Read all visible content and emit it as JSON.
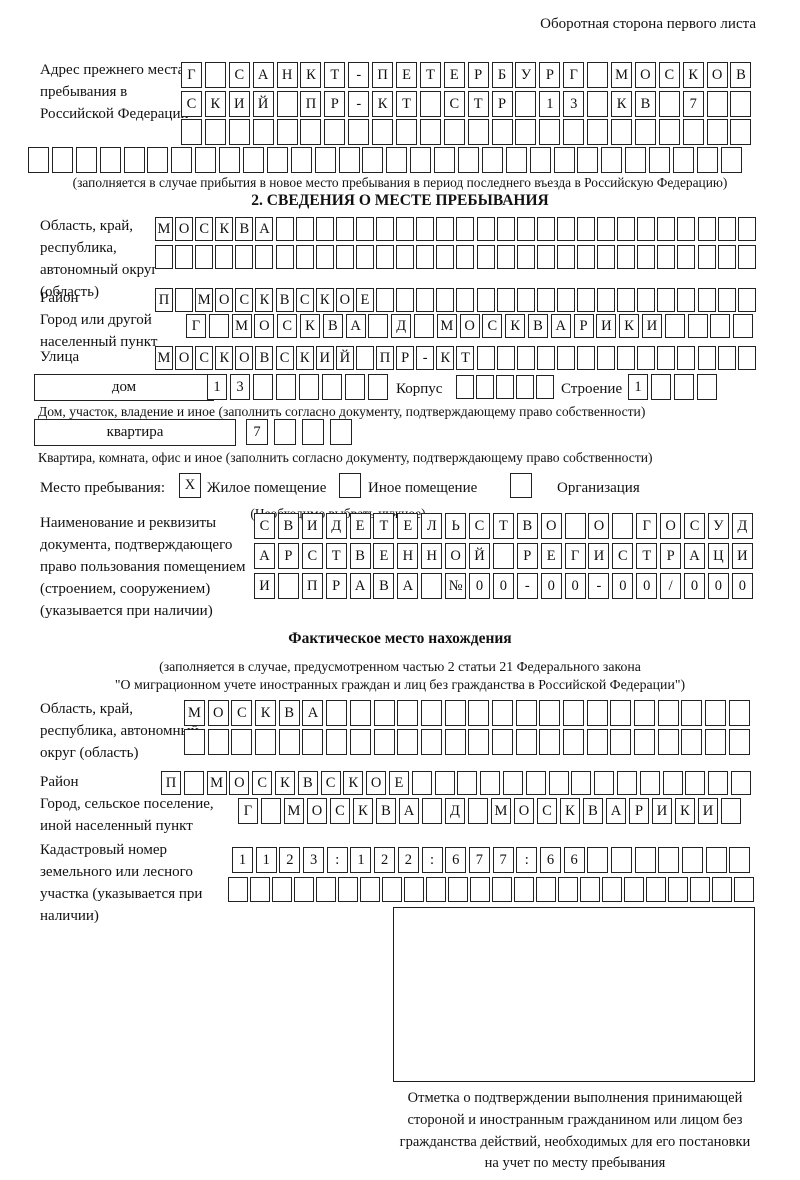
{
  "header": {
    "note": "Оборотная сторона первого листа"
  },
  "prev_address": {
    "label": "Адрес прежнего места пребывания в Российской Федерации",
    "row1": {
      "chars": "Г САНКТ-ПЕТЕРБУРГ МОСКОВ",
      "len": 24
    },
    "row2": {
      "chars": "СКИЙ ПР-КТ СТР 13 КВ 7",
      "len": 24
    },
    "row3": {
      "chars": "",
      "len": 24
    },
    "row4": {
      "chars": "",
      "len": 30
    },
    "caption": "(заполняется в случае прибытия в новое место пребывания в период последнего въезда в Российскую Федерацию)"
  },
  "section2": {
    "heading": "2. СВЕДЕНИЯ О МЕСТЕ ПРЕБЫВАНИЯ",
    "oblast": {
      "label": "Область, край, республика, автономный округ (область)",
      "row1": {
        "chars": "МОСКВА",
        "len": 30
      },
      "row2": {
        "chars": "",
        "len": 30
      }
    },
    "rayon": {
      "label": "Район",
      "row": {
        "chars": "П МОСКВСКОЕ",
        "len": 30
      }
    },
    "gorod": {
      "label": "Город или другой населенный пункт",
      "row": {
        "chars": "Г МОСКВА Д МОСКВАРИКИ",
        "len": 25
      }
    },
    "ulitsa": {
      "label": "Улица",
      "row": {
        "chars": "МОСКОВСКИЙ ПР-КТ",
        "len": 30
      }
    },
    "dom": {
      "box_label": "дом",
      "cells": {
        "chars": "13",
        "len": 8
      },
      "korpus_label": "Корпус",
      "korpus_cells": {
        "chars": "",
        "len": 5
      },
      "stroenie_label": "Строение",
      "stroenie_cells": {
        "chars": "1",
        "len": 4
      },
      "caption": "Дом, участок, владение и иное (заполнить согласно документу, подтверждающему право собственности)"
    },
    "kvartira": {
      "box_label": "квартира",
      "cells": {
        "chars": "7",
        "len": 4
      },
      "caption": "Квартира, комната, офис и иное (заполнить согласно документу, подтверждающему право собственности)"
    },
    "mesto": {
      "label": "Место пребывания:",
      "zhiloe_label": "Жилое помещение",
      "zhiloe_mark": "X",
      "inoe_label": "Иное помещение",
      "inoe_mark": "",
      "org_label": "Организация",
      "org_mark": "",
      "choose_caption": "(Необходимо выбрать нужное)"
    },
    "doc": {
      "label": "Наименование и реквизиты документа, подтверждающего право пользования помещением (строением, сооружением) (указывается при наличии)",
      "row1": {
        "chars": "СВИДЕТЕЛЬСТВО О ГОСУД",
        "len": 21
      },
      "row2": {
        "chars": "АРСТВЕННОЙ РЕГИСТРАЦИ",
        "len": 21
      },
      "row3": {
        "chars": "И ПРАВА №00-00-00/000",
        "len": 21
      }
    }
  },
  "fact": {
    "heading": "Фактическое место нахождения",
    "caption1": "(заполняется в случае, предусмотренном частью 2 статьи 21 Федерального закона",
    "caption2": "\"О миграционном учете иностранных граждан и лиц без гражданства в Российской Федерации\")",
    "oblast": {
      "label": "Область, край, республика, автономный округ (область)",
      "row1": {
        "chars": "МОСКВА",
        "len": 24
      },
      "row2": {
        "chars": "",
        "len": 24
      }
    },
    "rayon": {
      "label": "Район",
      "row": {
        "chars": "П МОСКВСКОЕ",
        "len": 26
      }
    },
    "gorod": {
      "label": "Город, сельское поселение, иной населенный пункт",
      "row": {
        "chars": "Г МОСКВА Д МОСКВАРИКИ",
        "len": 22
      }
    },
    "kadastr": {
      "label": "Кадастровый номер земельного или лесного участка (указывается при наличии)",
      "row1": {
        "chars": "1123:122:677:66",
        "len": 22
      },
      "row2": {
        "chars": "",
        "len": 24
      }
    },
    "stamp_caption_lines": [
      "Отметка о подтверждении выполнения принимающей",
      "стороной и иностранным гражданином или лицом без",
      "гражданства действий, необходимых для его постановки",
      "на учет по месту пребывания"
    ]
  }
}
